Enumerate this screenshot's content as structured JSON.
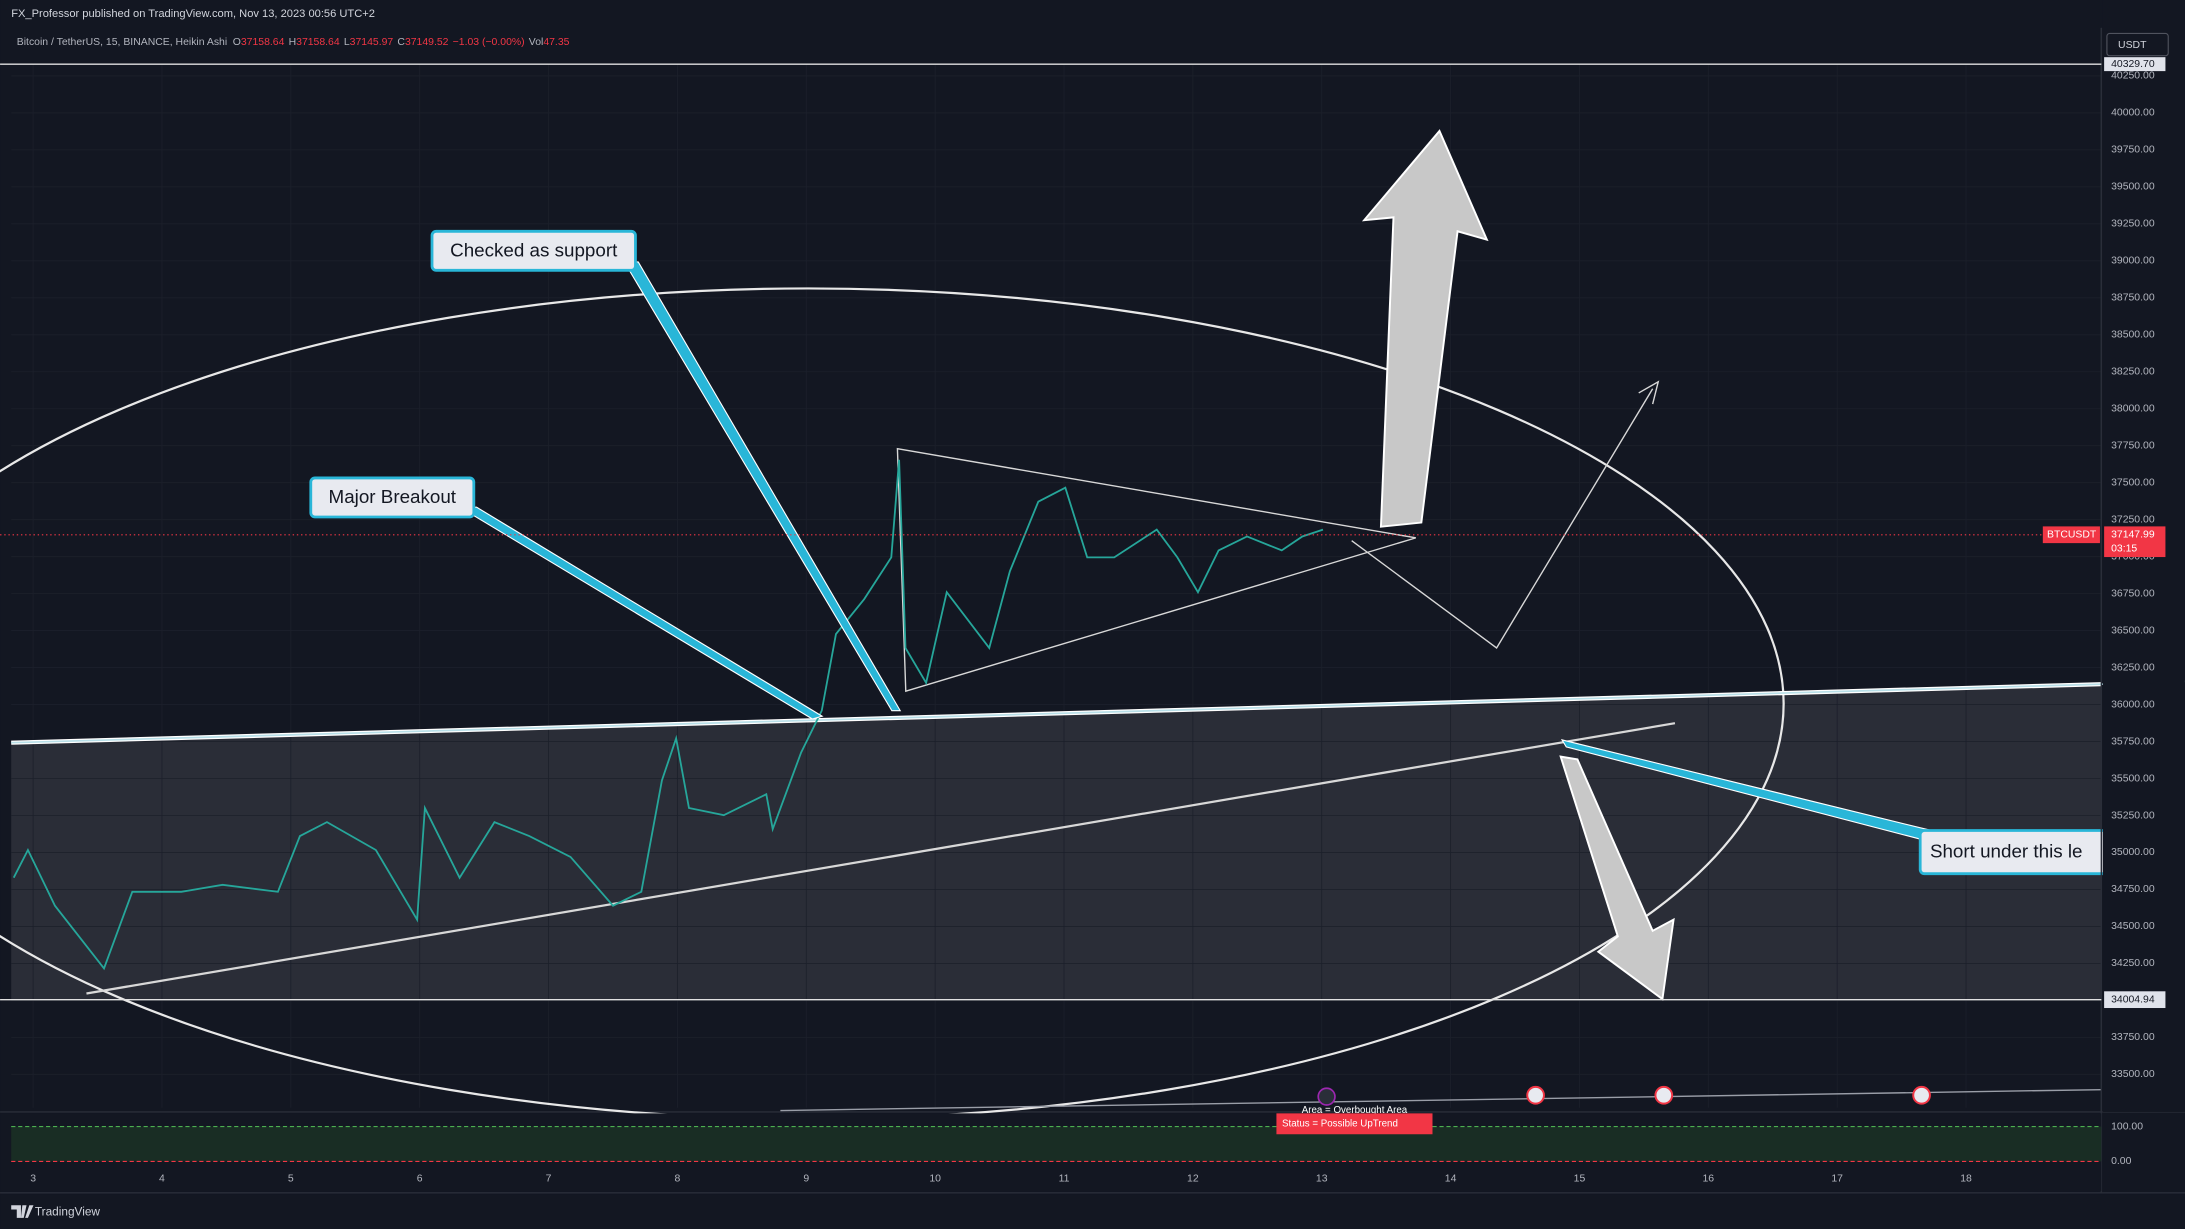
{
  "header": {
    "publisher": "FX_Professor published on TradingView.com, Nov 13, 2023 00:56 UTC+2",
    "symbol": "Bitcoin / TetherUS, 15, BINANCE, Heikin Ashi",
    "ohlc": [
      {
        "key": "O",
        "value": 37158.64
      },
      {
        "key": "H",
        "value": 37158.64
      },
      {
        "key": "L",
        "value": 37145.97
      },
      {
        "key": "C",
        "value": 37149.52
      }
    ],
    "change": "−1.03 (−0.00%)",
    "volume_key": "Vol",
    "volume": 47.35,
    "currency": "USDT"
  },
  "chart_data": {
    "type": "line",
    "color": "#26a69a",
    "x": [
      2.85,
      2.96,
      3.17,
      3.55,
      3.77,
      4.15,
      4.47,
      4.9,
      5.07,
      5.28,
      5.66,
      5.98,
      6.04,
      6.31,
      6.58,
      6.85,
      7.17,
      7.5,
      7.72,
      7.88,
      7.99,
      8.09,
      8.36,
      8.69,
      8.74,
      8.96,
      9.12,
      9.23,
      9.45,
      9.66,
      9.72,
      9.77,
      9.93,
      10.09,
      10.42,
      10.58,
      10.8,
      11.01,
      11.18,
      11.39,
      11.72,
      11.88,
      12.04,
      12.2,
      12.42,
      12.69,
      12.85,
      13.01
    ],
    "values": [
      34829,
      35017,
      34640,
      34216,
      34734,
      34734,
      34781,
      34734,
      35111,
      35205,
      35017,
      34546,
      35300,
      34829,
      35205,
      35111,
      34970,
      34640,
      34734,
      35488,
      35771,
      35300,
      35252,
      35394,
      35158,
      35676,
      35959,
      36477,
      36713,
      36995,
      37655,
      36383,
      36147,
      36760,
      36383,
      36901,
      37372,
      37466,
      36995,
      36995,
      37183,
      36995,
      36760,
      37042,
      37136,
      37042,
      37136,
      37183
    ],
    "xlim": [
      2.83,
      19.05
    ],
    "ylim": [
      33274,
      40330
    ],
    "xticks": [
      3,
      4,
      5,
      6,
      7,
      8,
      9,
      10,
      11,
      12,
      13,
      14,
      15,
      16,
      17,
      18
    ],
    "yticks": [
      {
        "value": 33500,
        "label": "33500.00"
      },
      {
        "value": 33750,
        "label": "33750.00"
      },
      {
        "value": 34000,
        "label": "34000.00"
      },
      {
        "value": 34250,
        "label": "34250.00"
      },
      {
        "value": 34500,
        "label": "34500.00"
      },
      {
        "value": 34750,
        "label": "34750.00"
      },
      {
        "value": 35000,
        "label": "35000.00"
      },
      {
        "value": 35250,
        "label": "35250.00"
      },
      {
        "value": 35500,
        "label": "35500.00"
      },
      {
        "value": 35750,
        "label": "35750.00"
      },
      {
        "value": 36000,
        "label": "36000.00"
      },
      {
        "value": 36250,
        "label": "36250.00"
      },
      {
        "value": 36500,
        "label": "36500.00"
      },
      {
        "value": 36750,
        "label": "36750.00"
      },
      {
        "value": 37000,
        "label": "37000.00"
      },
      {
        "value": 37250,
        "label": "37250.00"
      },
      {
        "value": 37500,
        "label": "37500.00"
      },
      {
        "value": 37750,
        "label": "37750.00"
      },
      {
        "value": 38000,
        "label": "38000.00"
      },
      {
        "value": 38250,
        "label": "38250.00"
      },
      {
        "value": 38500,
        "label": "38500.00"
      },
      {
        "value": 38750,
        "label": "38750.00"
      },
      {
        "value": 39000,
        "label": "39000.00"
      },
      {
        "value": 39250,
        "label": "39250.00"
      },
      {
        "value": 39500,
        "label": "39500.00"
      },
      {
        "value": 39750,
        "label": "39750.00"
      },
      {
        "value": 40000,
        "label": "40000.00"
      },
      {
        "value": 40250,
        "label": "40250.00"
      }
    ],
    "grid": true,
    "high_line": {
      "value": 40329.7,
      "label": "40329.70"
    },
    "level_line": {
      "value": 34004.94,
      "label": "34004.94"
    },
    "last_price": {
      "value": 37147.99,
      "label": "37147.99",
      "symbol": "BTCUSDT",
      "countdown": "03:15",
      "color": "#f23645"
    }
  },
  "annotations": [
    "Checked as support",
    "Major Breakout",
    "Short under this le"
  ],
  "indicator": {
    "ylim": [
      -10,
      110
    ],
    "yticks": [
      {
        "value": 100,
        "label": "100.00"
      },
      {
        "value": 0,
        "label": "0.00"
      }
    ],
    "area_text": "Area = Overbought Area",
    "status_text": "Status =  Possible UpTrend"
  },
  "footer": {
    "brand": "TradingView"
  }
}
